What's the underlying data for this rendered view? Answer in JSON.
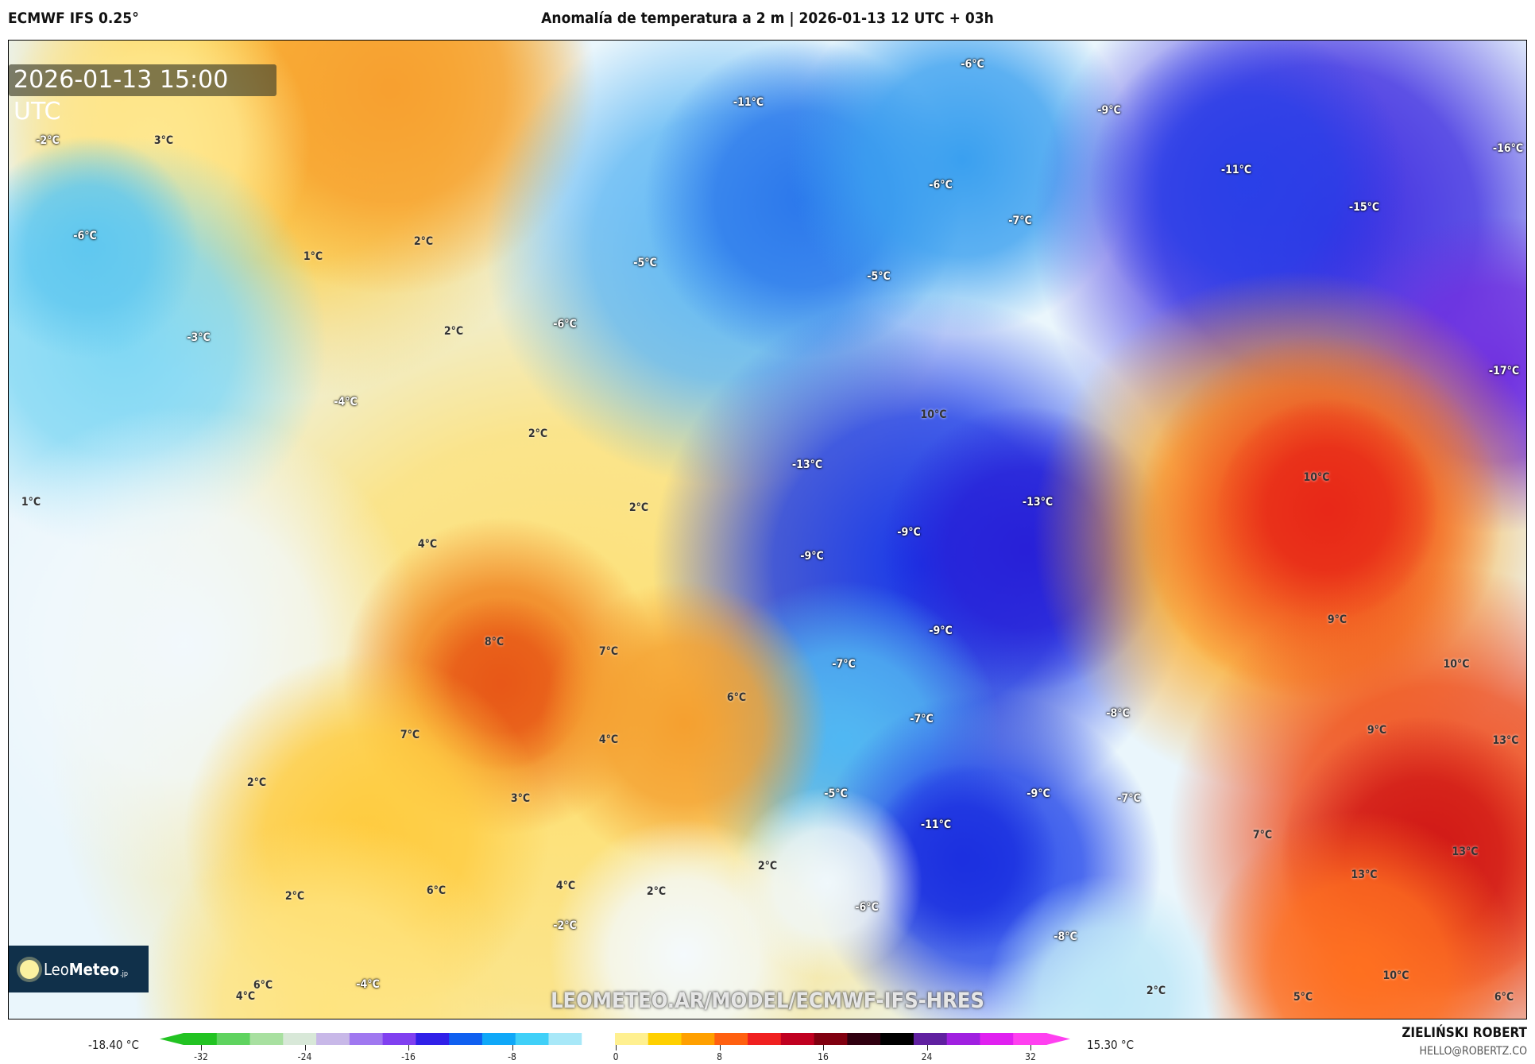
{
  "header": {
    "model": "ECMWF IFS 0.25°",
    "title": "Anomalía de temperatura a 2 m | 2026-01-13 12 UTC + 03h"
  },
  "map": {
    "valid_time": "2026-01-13 15:00 UTC",
    "watermark": "LEOMETEO.AR/MODEL/ECMWF-IFS-HRES",
    "logo": {
      "light": "Leo",
      "bold": "Meteo",
      "suffix": ".jp"
    },
    "labels": [
      "-2°C",
      "3°C",
      "-6°C",
      "1°C",
      "2°C",
      "-3°C",
      "2°C",
      "-4°C",
      "2°C",
      "1°C",
      "4°C",
      "2°C",
      "-11°C",
      "-9°C",
      "-6°C",
      "-6°C",
      "-7°C",
      "-11°C",
      "-16°C",
      "-15°C",
      "-5°C",
      "-5°C",
      "-6°C",
      "-17°C",
      "10°C",
      "-13°C",
      "10°C",
      "-13°C",
      "-9°C",
      "-9°C",
      "9°C",
      "-9°C",
      "8°C",
      "7°C",
      "-7°C",
      "10°C",
      "6°C",
      "-7°C",
      "-8°C",
      "9°C",
      "13°C",
      "7°C",
      "4°C",
      "2°C",
      "-5°C",
      "-9°C",
      "-7°C",
      "3°C",
      "-11°C",
      "7°C",
      "13°C",
      "2°C",
      "13°C",
      "2°C",
      "6°C",
      "4°C",
      "2°C",
      "-6°C",
      "-2°C",
      "-8°C",
      "10°C",
      "2°C",
      "6°C",
      "-4°C",
      "4°C",
      "5°C",
      "6°C"
    ]
  },
  "colorbar": {
    "min_label": "-18.40 °C",
    "max_label": "15.30 °C",
    "ticks": [
      "-32",
      "-24",
      "-16",
      "-8",
      "0",
      "8",
      "16",
      "24",
      "32"
    ],
    "colors": [
      "#22c322",
      "#5fd35f",
      "#a8e0a0",
      "#d8e8d8",
      "#c8b8e8",
      "#a078f0",
      "#8040f0",
      "#3020e8",
      "#1060f0",
      "#10a8f8",
      "#40d0f8",
      "#a8e8f8",
      "#ffffff",
      "#fff090",
      "#ffd000",
      "#ffa000",
      "#ff6010",
      "#f02020",
      "#c00020",
      "#800010",
      "#300010",
      "#000000",
      "#6020a0",
      "#a020e0",
      "#e020f0",
      "#ff40f0"
    ]
  },
  "credits": {
    "author": "ZIELIŃSKI ROBERT",
    "email": "HELLO@ROBERTZ.CO"
  }
}
